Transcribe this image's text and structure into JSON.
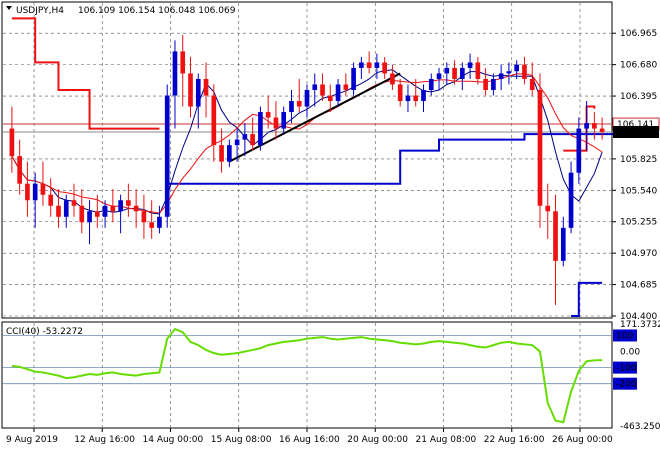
{
  "header": {
    "symbol": "USDJPY,H4",
    "ohlc": "106.109 106.154 106.048 106.069"
  },
  "indicator": {
    "label": "CCI(40) -53.2272"
  },
  "colors": {
    "bull": "#0000cc",
    "bear": "#ee1111",
    "ma_dark": "#000080",
    "ma_red": "#ee1111",
    "stop_red": "#ee1111",
    "stop_blue": "#0000cc",
    "cci": "#66dd00",
    "trendline": "#000000",
    "level_line": "#cc3333",
    "axis_tag_bg": "#0000cc",
    "price_tag_bg": "#000000"
  },
  "chart_data": [
    {
      "type": "candlestick",
      "title": "USDJPY,H4",
      "ylim": [
        104.4,
        107.23
      ],
      "y_ticks": [
        "106.965",
        "106.680",
        "106.395",
        "105.825",
        "105.540",
        "105.255",
        "104.970",
        "104.685",
        "104.400"
      ],
      "x_tick_labels": [
        "9 Aug 2019",
        "12 Aug 16:00",
        "14 Aug 00:00",
        "15 Aug 08:00",
        "16 Aug 16:00",
        "20 Aug 00:00",
        "21 Aug 08:00",
        "22 Aug 16:00",
        "26 Aug 00:00"
      ],
      "price_tags": [
        {
          "label": "106.141",
          "value": 106.141,
          "role": "level"
        },
        {
          "label": "106.069",
          "value": 106.069,
          "role": "current"
        }
      ],
      "candles": [
        [
          106.1,
          106.3,
          105.7,
          105.85
        ],
        [
          105.85,
          106.0,
          105.5,
          105.6
        ],
        [
          105.6,
          105.8,
          105.3,
          105.45
        ],
        [
          105.45,
          105.7,
          105.2,
          105.6
        ],
        [
          105.6,
          105.8,
          105.4,
          105.5
        ],
        [
          105.5,
          105.65,
          105.3,
          105.4
        ],
        [
          105.4,
          105.55,
          105.2,
          105.3
        ],
        [
          105.3,
          105.5,
          105.2,
          105.45
        ],
        [
          105.45,
          105.6,
          105.3,
          105.4
        ],
        [
          105.4,
          105.55,
          105.15,
          105.25
        ],
        [
          105.25,
          105.45,
          105.05,
          105.35
        ],
        [
          105.35,
          105.5,
          105.2,
          105.3
        ],
        [
          105.3,
          105.45,
          105.2,
          105.4
        ],
        [
          105.4,
          105.55,
          105.25,
          105.35
        ],
        [
          105.35,
          105.5,
          105.15,
          105.45
        ],
        [
          105.45,
          105.6,
          105.3,
          105.4
        ],
        [
          105.4,
          105.55,
          105.2,
          105.35
        ],
        [
          105.35,
          105.5,
          105.1,
          105.25
        ],
        [
          105.25,
          105.45,
          105.1,
          105.2
        ],
        [
          105.2,
          105.4,
          105.15,
          105.3
        ],
        [
          105.3,
          106.5,
          105.2,
          106.4
        ],
        [
          106.4,
          106.9,
          106.1,
          106.8
        ],
        [
          106.8,
          106.95,
          106.3,
          106.6
        ],
        [
          106.6,
          106.75,
          106.2,
          106.3
        ],
        [
          106.3,
          106.6,
          106.1,
          106.55
        ],
        [
          106.55,
          106.7,
          106.2,
          106.4
        ],
        [
          106.4,
          106.5,
          105.8,
          105.95
        ],
        [
          105.95,
          106.1,
          105.7,
          105.8
        ],
        [
          105.8,
          106.0,
          105.75,
          105.95
        ],
        [
          105.95,
          106.1,
          105.8,
          106.0
        ],
        [
          106.0,
          106.15,
          105.85,
          106.05
        ],
        [
          106.05,
          106.2,
          105.9,
          105.95
        ],
        [
          105.95,
          106.3,
          105.9,
          106.25
        ],
        [
          106.25,
          106.4,
          106.1,
          106.2
        ],
        [
          106.2,
          106.35,
          106.0,
          106.1
        ],
        [
          106.1,
          106.3,
          106.05,
          106.25
        ],
        [
          106.25,
          106.45,
          106.15,
          106.35
        ],
        [
          106.35,
          106.55,
          106.25,
          106.3
        ],
        [
          106.3,
          106.5,
          106.2,
          106.45
        ],
        [
          106.45,
          106.6,
          106.3,
          106.5
        ],
        [
          106.5,
          106.6,
          106.35,
          106.4
        ],
        [
          106.4,
          106.5,
          106.25,
          106.35
        ],
        [
          106.35,
          106.55,
          106.3,
          106.5
        ],
        [
          106.5,
          106.6,
          106.4,
          106.45
        ],
        [
          106.45,
          106.7,
          106.4,
          106.65
        ],
        [
          106.65,
          106.75,
          106.55,
          106.7
        ],
        [
          106.7,
          106.8,
          106.6,
          106.65
        ],
        [
          106.65,
          106.78,
          106.55,
          106.7
        ],
        [
          106.7,
          106.75,
          106.55,
          106.6
        ],
        [
          106.6,
          106.68,
          106.45,
          106.5
        ],
        [
          106.5,
          106.55,
          106.3,
          106.35
        ],
        [
          106.35,
          106.5,
          106.25,
          106.4
        ],
        [
          106.4,
          106.55,
          106.3,
          106.35
        ],
        [
          106.35,
          106.5,
          106.25,
          106.45
        ],
        [
          106.45,
          106.6,
          106.4,
          106.55
        ],
        [
          106.55,
          106.65,
          106.45,
          106.6
        ],
        [
          106.6,
          106.7,
          106.5,
          106.65
        ],
        [
          106.65,
          106.72,
          106.5,
          106.55
        ],
        [
          106.55,
          106.7,
          106.45,
          106.65
        ],
        [
          106.65,
          106.78,
          106.55,
          106.7
        ],
        [
          106.7,
          106.75,
          106.5,
          106.55
        ],
        [
          106.55,
          106.65,
          106.4,
          106.45
        ],
        [
          106.45,
          106.6,
          106.4,
          106.55
        ],
        [
          106.55,
          106.68,
          106.45,
          106.6
        ],
        [
          106.6,
          106.7,
          106.5,
          106.62
        ],
        [
          106.62,
          106.72,
          106.55,
          106.68
        ],
        [
          106.68,
          106.75,
          106.5,
          106.55
        ],
        [
          106.55,
          106.7,
          106.4,
          106.45
        ],
        [
          106.45,
          106.6,
          105.2,
          105.4
        ],
        [
          105.4,
          105.6,
          105.1,
          105.35
        ],
        [
          105.35,
          105.5,
          104.5,
          104.9
        ],
        [
          104.9,
          105.3,
          104.85,
          105.2
        ],
        [
          105.2,
          105.8,
          105.15,
          105.7
        ],
        [
          105.7,
          106.2,
          105.6,
          106.1
        ],
        [
          106.1,
          106.35,
          105.9,
          106.15
        ],
        [
          106.15,
          106.25,
          106.0,
          106.1
        ],
        [
          106.1,
          106.2,
          106.0,
          106.07
        ]
      ],
      "overlays": [
        {
          "name": "",
          "kind": "stop_red",
          "segments": [
            [
              [
                0,
                107.1
              ],
              [
                3,
                106.7
              ],
              [
                6,
                106.45
              ],
              [
                9,
                106.45
              ],
              [
                10,
                106.1
              ],
              [
                19,
                106.1
              ]
            ],
            [
              [
                71,
                105.9
              ],
              [
                73,
                105.9
              ],
              [
                74,
                106.3
              ],
              [
                75,
                106.28
              ]
            ]
          ]
        },
        {
          "name": "",
          "kind": "stop_blue",
          "segments": [
            [
              [
                20,
                105.6
              ],
              [
                48,
                105.6
              ],
              [
                50,
                105.9
              ],
              [
                52,
                105.9
              ],
              [
                55,
                106.0
              ],
              [
                64,
                106.0
              ],
              [
                66,
                106.05
              ],
              [
                80,
                106.05
              ]
            ],
            [
              [
                72,
                104.4
              ],
              [
                73,
                104.7
              ],
              [
                76,
                104.7
              ]
            ]
          ]
        }
      ]
    },
    {
      "type": "line",
      "title": "CCI(40) -53.2272",
      "ylim": [
        -463.2509,
        171.3732
      ],
      "y_ticks": [
        "171.3732",
        "100",
        "0.00",
        "-100",
        "-200",
        "-463.2509"
      ],
      "levels": [
        100,
        -100,
        -200
      ],
      "series": [
        {
          "name": "",
          "values": [
            -90,
            -95,
            -110,
            -125,
            -130,
            -140,
            -150,
            -165,
            -160,
            -150,
            -140,
            -145,
            -135,
            -130,
            -140,
            -145,
            -150,
            -140,
            -135,
            -130,
            80,
            140,
            120,
            60,
            40,
            10,
            -10,
            -20,
            -15,
            -10,
            0,
            10,
            20,
            40,
            50,
            60,
            65,
            70,
            80,
            85,
            90,
            80,
            75,
            80,
            85,
            90,
            80,
            75,
            70,
            65,
            55,
            50,
            45,
            50,
            60,
            65,
            60,
            55,
            50,
            40,
            30,
            25,
            40,
            55,
            60,
            50,
            45,
            40,
            0,
            -320,
            -430,
            -440,
            -250,
            -120,
            -60,
            -55,
            -53
          ]
        }
      ]
    }
  ]
}
